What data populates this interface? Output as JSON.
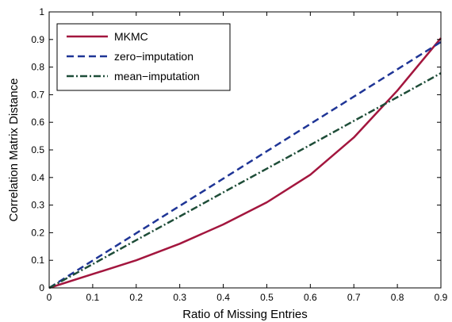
{
  "chart_data": {
    "type": "line",
    "xlabel": "Ratio of Missing Entries",
    "ylabel": "Correlation Matrix Distance",
    "xlim": [
      0,
      0.9
    ],
    "ylim": [
      0,
      1
    ],
    "xticks": [
      "0",
      "0.1",
      "0.2",
      "0.3",
      "0.4",
      "0.5",
      "0.6",
      "0.7",
      "0.8",
      "0.9"
    ],
    "yticks": [
      "0",
      "0.1",
      "0.2",
      "0.3",
      "0.4",
      "0.5",
      "0.6",
      "0.7",
      "0.8",
      "0.9",
      "1"
    ],
    "grid": false,
    "legend_position": "top-left",
    "x": [
      0,
      0.1,
      0.2,
      0.3,
      0.4,
      0.5,
      0.6,
      0.7,
      0.8,
      0.9
    ],
    "series": [
      {
        "name": "MKMC",
        "values": [
          0,
          0.05,
          0.1,
          0.16,
          0.23,
          0.31,
          0.41,
          0.545,
          0.715,
          0.905
        ],
        "color": "#a3163e",
        "style": "solid"
      },
      {
        "name": "zero−imputation",
        "values": [
          0,
          0.099,
          0.198,
          0.297,
          0.396,
          0.495,
          0.594,
          0.693,
          0.792,
          0.891
        ],
        "color": "#1f3596",
        "style": "dashed"
      },
      {
        "name": "mean−imputation",
        "values": [
          0,
          0.086,
          0.173,
          0.259,
          0.346,
          0.432,
          0.518,
          0.605,
          0.691,
          0.778
        ],
        "color": "#1e4d38",
        "style": "dashdot"
      }
    ]
  }
}
